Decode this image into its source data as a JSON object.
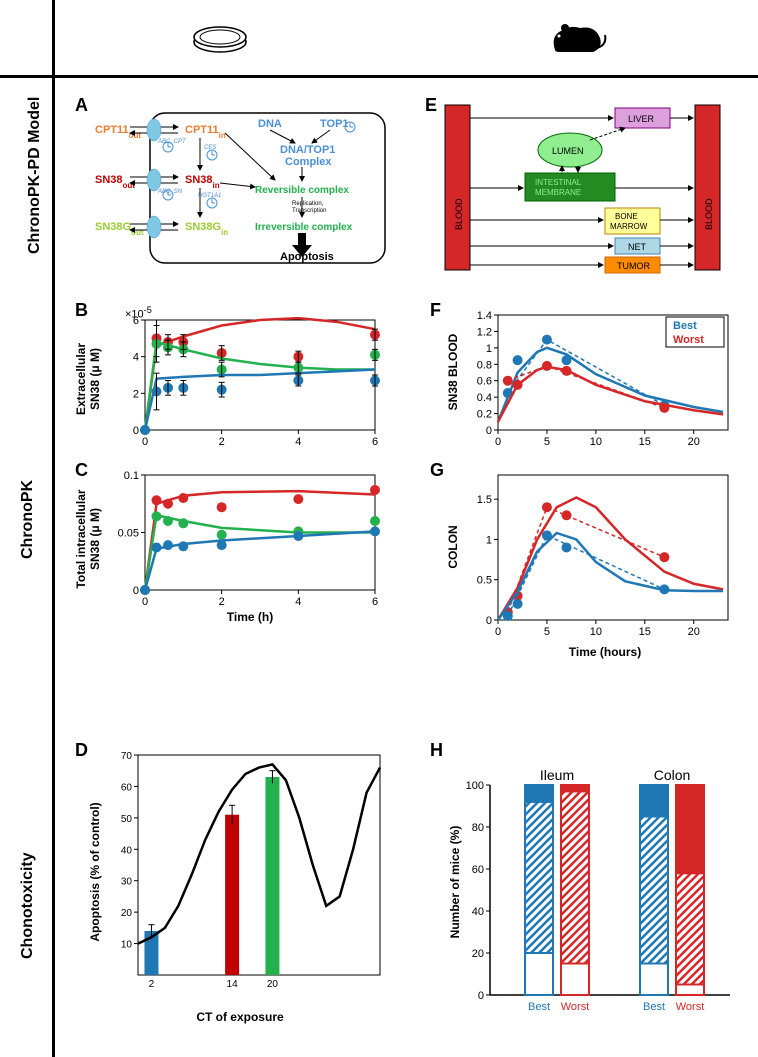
{
  "row_labels": {
    "model": "ChronoPK-PD Model",
    "pk": "ChronoPK",
    "tox": "Chonotoxicity"
  },
  "panels": {
    "A": {
      "label": "A"
    },
    "B": {
      "label": "B",
      "ylabel": "Extracellular\nSN38 (μ M)",
      "ylabel_top": "×10⁻⁵"
    },
    "C": {
      "label": "C",
      "ylabel": "Total intracellular\nSN38 (μ M)",
      "xlabel": "Time (h)"
    },
    "D": {
      "label": "D",
      "ylabel": "Apoptosis (% of control)",
      "xlabel": "CT of exposure"
    },
    "E": {
      "label": "E"
    },
    "F": {
      "label": "F",
      "ylabel": "SN38 BLOOD"
    },
    "G": {
      "label": "G",
      "ylabel": "COLON",
      "xlabel": "Time (hours)"
    },
    "H": {
      "label": "H",
      "ylabel": "Number of mice (%)"
    }
  },
  "panel_A": {
    "species": [
      {
        "id": "cpt11_out",
        "text": "CPT11",
        "sub": "out",
        "color": "#ed7d31"
      },
      {
        "id": "cpt11_in",
        "text": "CPT11",
        "sub": "in",
        "color": "#ed7d31"
      },
      {
        "id": "sn38_out",
        "text": "SN38",
        "sub": "out",
        "color": "#c00000"
      },
      {
        "id": "sn38_in",
        "text": "SN38",
        "sub": "in",
        "color": "#c00000"
      },
      {
        "id": "sn38g_out",
        "text": "SN38G",
        "sub": "out",
        "color": "#9acd32"
      },
      {
        "id": "sn38g_in",
        "text": "SN38G",
        "sub": "in",
        "color": "#9acd32"
      },
      {
        "id": "dna",
        "text": "DNA",
        "color": "#4a90d9"
      },
      {
        "id": "top1",
        "text": "TOP1",
        "color": "#4a90d9"
      },
      {
        "id": "dnatop1",
        "text": "DNA/TOP1\nComplex",
        "color": "#4a90d9"
      },
      {
        "id": "rev",
        "text": "Reversible complex",
        "color": "#22b14c"
      },
      {
        "id": "irrev",
        "text": "Irreversible complex",
        "color": "#22b14c"
      },
      {
        "id": "apop",
        "text": "Apoptosis",
        "color": "#000"
      }
    ],
    "enzymes": [
      {
        "id": "abc_cpt",
        "text": "ABC_CPT"
      },
      {
        "id": "ces",
        "text": "CES"
      },
      {
        "id": "abc_sn",
        "text": "ABC_SN"
      },
      {
        "id": "ugt",
        "text": "UGT1A1"
      }
    ],
    "extra": "Replication,\nTranscription"
  },
  "panel_E": {
    "boxes": [
      {
        "id": "blood_left",
        "text": "BLOOD",
        "fill": "#d62728",
        "stroke": "#000"
      },
      {
        "id": "blood_right",
        "text": "BLOOD",
        "fill": "#d62728",
        "stroke": "#000"
      },
      {
        "id": "liver",
        "text": "LIVER",
        "fill": "#dda0dd",
        "stroke": "#800080"
      },
      {
        "id": "lumen",
        "text": "LUMEN",
        "fill": "#90ee90",
        "stroke": "#006400"
      },
      {
        "id": "intestinal",
        "text": "INTESTINAL\nMEMBRANE",
        "fill": "#228b22",
        "stroke": "#006400",
        "textColor": "#90ee90"
      },
      {
        "id": "bone",
        "text": "BONE\nMARROW",
        "fill": "#ffff99",
        "stroke": "#b8860b"
      },
      {
        "id": "net",
        "text": "NET",
        "fill": "#add8e6",
        "stroke": "#4682b4"
      },
      {
        "id": "tumor",
        "text": "TUMOR",
        "fill": "#ff8c00",
        "stroke": "#cc6600"
      }
    ]
  },
  "chart_B": {
    "type": "line_scatter",
    "xlim": [
      0,
      6
    ],
    "ylim": [
      0,
      6
    ],
    "xticks": [
      0,
      2,
      4,
      6
    ],
    "yticks": [
      0,
      2,
      4,
      6
    ],
    "series": [
      {
        "color": "#d62728",
        "points": [
          [
            0,
            0
          ],
          [
            0.3,
            5.0
          ],
          [
            0.6,
            4.8
          ],
          [
            1.0,
            4.8
          ],
          [
            2,
            4.2
          ],
          [
            4,
            4.0
          ],
          [
            6,
            5.2
          ]
        ],
        "line": [
          [
            0,
            0
          ],
          [
            0.3,
            4.6
          ],
          [
            1,
            5.1
          ],
          [
            2,
            5.7
          ],
          [
            3,
            6.0
          ],
          [
            4,
            6.1
          ],
          [
            5,
            5.9
          ],
          [
            6,
            5.5
          ]
        ]
      },
      {
        "color": "#22b14c",
        "points": [
          [
            0,
            0
          ],
          [
            0.3,
            4.7
          ],
          [
            0.6,
            4.5
          ],
          [
            1.0,
            4.4
          ],
          [
            2,
            3.3
          ],
          [
            4,
            3.4
          ],
          [
            6,
            4.1
          ]
        ],
        "line": [
          [
            0,
            0
          ],
          [
            0.3,
            4.8
          ],
          [
            1,
            4.4
          ],
          [
            2,
            3.9
          ],
          [
            3,
            3.6
          ],
          [
            4,
            3.4
          ],
          [
            5,
            3.3
          ],
          [
            6,
            3.3
          ]
        ]
      },
      {
        "color": "#1f77b4",
        "points": [
          [
            0,
            0
          ],
          [
            0.3,
            2.1
          ],
          [
            0.6,
            2.3
          ],
          [
            1.0,
            2.3
          ],
          [
            2,
            2.2
          ],
          [
            4,
            2.7
          ],
          [
            6,
            2.7
          ]
        ],
        "line": [
          [
            0,
            0
          ],
          [
            0.3,
            2.8
          ],
          [
            1,
            2.9
          ],
          [
            2,
            3.0
          ],
          [
            3,
            3.0
          ],
          [
            4,
            3.1
          ],
          [
            5,
            3.2
          ],
          [
            6,
            3.3
          ]
        ]
      }
    ],
    "errors": [
      [
        0.3,
        1.0
      ],
      [
        0.6,
        0.4
      ],
      [
        1.0,
        0.4
      ],
      [
        2,
        0.4
      ],
      [
        4,
        0.3
      ],
      [
        6,
        0.3
      ]
    ]
  },
  "chart_C": {
    "type": "line_scatter",
    "xlim": [
      0,
      6
    ],
    "ylim": [
      0,
      0.1
    ],
    "xticks": [
      0,
      2,
      4,
      6
    ],
    "yticks": [
      0,
      0.05,
      0.1
    ],
    "series": [
      {
        "color": "#d62728",
        "points": [
          [
            0,
            0
          ],
          [
            0.3,
            0.078
          ],
          [
            0.6,
            0.075
          ],
          [
            1.0,
            0.08
          ],
          [
            2,
            0.072
          ],
          [
            4,
            0.079
          ],
          [
            6,
            0.087
          ]
        ],
        "line": [
          [
            0,
            0
          ],
          [
            0.3,
            0.075
          ],
          [
            1,
            0.082
          ],
          [
            2,
            0.085
          ],
          [
            4,
            0.086
          ],
          [
            6,
            0.083
          ]
        ]
      },
      {
        "color": "#22b14c",
        "points": [
          [
            0,
            0
          ],
          [
            0.3,
            0.064
          ],
          [
            0.6,
            0.06
          ],
          [
            1.0,
            0.058
          ],
          [
            2,
            0.048
          ],
          [
            4,
            0.051
          ],
          [
            6,
            0.06
          ]
        ],
        "line": [
          [
            0,
            0
          ],
          [
            0.3,
            0.065
          ],
          [
            1,
            0.06
          ],
          [
            2,
            0.054
          ],
          [
            4,
            0.05
          ],
          [
            6,
            0.05
          ]
        ]
      },
      {
        "color": "#1f77b4",
        "points": [
          [
            0,
            0
          ],
          [
            0.3,
            0.037
          ],
          [
            0.6,
            0.039
          ],
          [
            1.0,
            0.038
          ],
          [
            2,
            0.039
          ],
          [
            4,
            0.047
          ],
          [
            6,
            0.051
          ]
        ],
        "line": [
          [
            0,
            0
          ],
          [
            0.3,
            0.036
          ],
          [
            1,
            0.04
          ],
          [
            2,
            0.043
          ],
          [
            4,
            0.047
          ],
          [
            6,
            0.051
          ]
        ]
      }
    ]
  },
  "chart_D": {
    "type": "bar_line",
    "xlim": [
      0,
      24
    ],
    "ylim": [
      0,
      70
    ],
    "yticks": [
      10,
      20,
      30,
      40,
      50,
      60,
      70
    ],
    "xticks": [
      2,
      14,
      20
    ],
    "bars": [
      {
        "x": 2,
        "y": 14,
        "color": "#1f77b4",
        "err": 2
      },
      {
        "x": 14,
        "y": 51,
        "color": "#c00000",
        "err": 3
      },
      {
        "x": 20,
        "y": 63,
        "color": "#22b14c",
        "err": 2
      }
    ],
    "curve": [
      [
        0,
        10
      ],
      [
        2,
        12
      ],
      [
        4,
        15
      ],
      [
        6,
        22
      ],
      [
        8,
        32
      ],
      [
        10,
        43
      ],
      [
        12,
        52
      ],
      [
        14,
        59
      ],
      [
        16,
        64
      ],
      [
        18,
        66
      ],
      [
        20,
        67
      ],
      [
        22,
        62
      ],
      [
        24,
        50
      ],
      [
        26,
        35
      ],
      [
        28,
        22
      ],
      [
        30,
        25
      ],
      [
        32,
        40
      ],
      [
        34,
        58
      ],
      [
        36,
        66
      ]
    ]
  },
  "chart_F": {
    "type": "line_scatter",
    "xlim": [
      0,
      23.5
    ],
    "ylim": [
      0,
      1.4
    ],
    "xticks": [
      0,
      5,
      10,
      15,
      20
    ],
    "yticks": [
      0,
      0.2,
      0.4,
      0.6,
      0.8,
      1,
      1.2,
      1.4
    ],
    "legend": [
      {
        "text": "Best",
        "color": "#1f77b4"
      },
      {
        "text": "Worst",
        "color": "#d62728"
      }
    ],
    "series": [
      {
        "color": "#1f77b4",
        "points": [
          [
            1,
            0.45
          ],
          [
            2,
            0.85
          ],
          [
            5,
            1.1
          ],
          [
            7,
            0.85
          ],
          [
            17,
            0.3
          ]
        ],
        "line": [
          [
            0,
            0.1
          ],
          [
            2,
            0.7
          ],
          [
            4,
            0.95
          ],
          [
            5,
            1.0
          ],
          [
            7,
            0.92
          ],
          [
            10,
            0.68
          ],
          [
            15,
            0.42
          ],
          [
            20,
            0.28
          ],
          [
            23,
            0.22
          ]
        ],
        "dash": [
          [
            1,
            0.45
          ],
          [
            5,
            1.1
          ],
          [
            17,
            0.3
          ]
        ]
      },
      {
        "color": "#d62728",
        "points": [
          [
            1,
            0.6
          ],
          [
            2,
            0.55
          ],
          [
            5,
            0.78
          ],
          [
            7,
            0.72
          ],
          [
            17,
            0.27
          ]
        ],
        "line": [
          [
            0,
            0.1
          ],
          [
            2,
            0.55
          ],
          [
            4,
            0.73
          ],
          [
            5,
            0.77
          ],
          [
            7,
            0.73
          ],
          [
            10,
            0.55
          ],
          [
            15,
            0.35
          ],
          [
            20,
            0.24
          ],
          [
            23,
            0.19
          ]
        ],
        "dash": [
          [
            1,
            0.6
          ],
          [
            5,
            0.78
          ],
          [
            17,
            0.27
          ]
        ]
      }
    ]
  },
  "chart_G": {
    "type": "line_scatter",
    "xlim": [
      0,
      23.5
    ],
    "ylim": [
      0,
      1.8
    ],
    "xticks": [
      0,
      5,
      10,
      15,
      20
    ],
    "yticks": [
      0,
      0.5,
      1,
      1.5
    ],
    "series": [
      {
        "color": "#d62728",
        "points": [
          [
            1,
            0.1
          ],
          [
            2,
            0.3
          ],
          [
            5,
            1.4
          ],
          [
            7,
            1.3
          ],
          [
            17,
            0.78
          ]
        ],
        "line": [
          [
            0,
            0
          ],
          [
            2,
            0.4
          ],
          [
            4,
            1.0
          ],
          [
            6,
            1.4
          ],
          [
            8,
            1.52
          ],
          [
            10,
            1.4
          ],
          [
            13,
            1.0
          ],
          [
            17,
            0.6
          ],
          [
            20,
            0.45
          ],
          [
            23,
            0.38
          ]
        ],
        "dash": [
          [
            1,
            0.1
          ],
          [
            5,
            1.4
          ],
          [
            17,
            0.78
          ]
        ]
      },
      {
        "color": "#1f77b4",
        "points": [
          [
            1,
            0.05
          ],
          [
            2,
            0.2
          ],
          [
            5,
            1.05
          ],
          [
            7,
            0.9
          ],
          [
            17,
            0.38
          ]
        ],
        "line": [
          [
            0,
            0
          ],
          [
            2,
            0.35
          ],
          [
            4,
            0.85
          ],
          [
            6,
            1.08
          ],
          [
            8,
            1.0
          ],
          [
            10,
            0.72
          ],
          [
            13,
            0.48
          ],
          [
            17,
            0.37
          ],
          [
            20,
            0.36
          ],
          [
            23,
            0.36
          ]
        ],
        "dash": [
          [
            1,
            0.05
          ],
          [
            5,
            1.05
          ],
          [
            17,
            0.38
          ]
        ]
      }
    ]
  },
  "chart_H": {
    "type": "stacked_bar",
    "ylim": [
      0,
      100
    ],
    "yticks": [
      0,
      20,
      40,
      60,
      80,
      100
    ],
    "groups": [
      "Ileum",
      "Colon"
    ],
    "cats": [
      "Best",
      "Worst"
    ],
    "colors": {
      "Best": "#1f77b4",
      "Worst": "#d62728"
    },
    "data": {
      "Ileum": {
        "Best": {
          "solid": 8,
          "hatch": 72,
          "empty": 20
        },
        "Worst": {
          "solid": 3,
          "hatch": 82,
          "empty": 15
        }
      },
      "Colon": {
        "Best": {
          "solid": 15,
          "hatch": 70,
          "empty": 15
        },
        "Worst": {
          "solid": 42,
          "hatch": 53,
          "empty": 5
        }
      }
    }
  }
}
